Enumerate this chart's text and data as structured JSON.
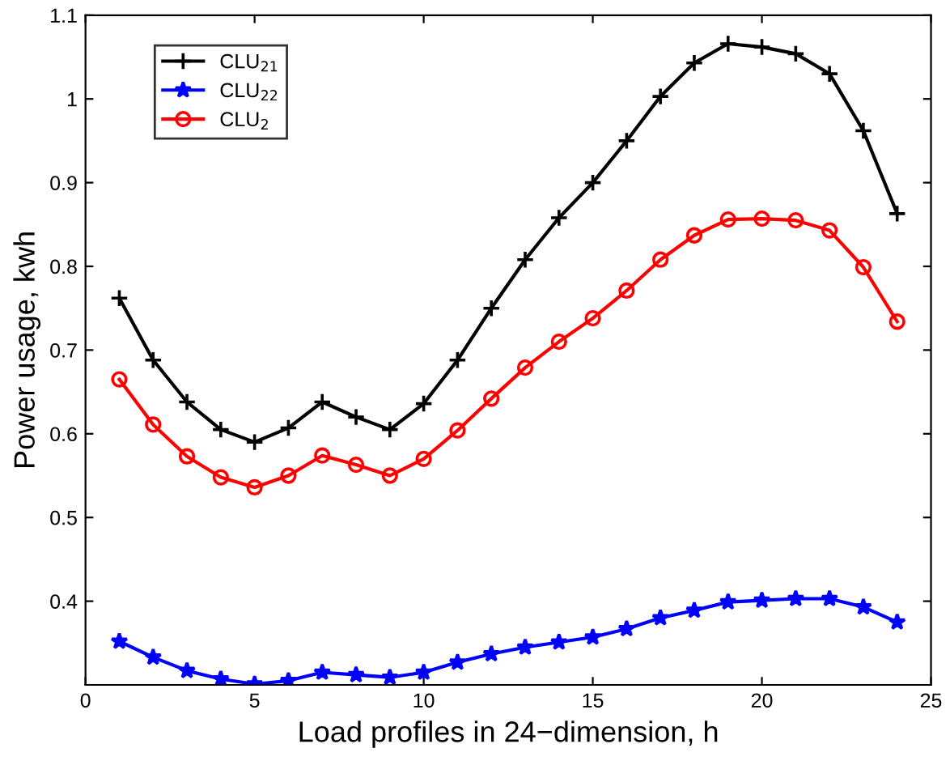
{
  "chart_data": {
    "type": "line",
    "xlabel": "Load profiles in 24−dimension, h",
    "ylabel": "Power usage, kwh",
    "x": [
      1,
      2,
      3,
      4,
      5,
      6,
      7,
      8,
      9,
      10,
      11,
      12,
      13,
      14,
      15,
      16,
      17,
      18,
      19,
      20,
      21,
      22,
      23,
      24
    ],
    "series": [
      {
        "name": "CLU$_{21}$",
        "color": "#000000",
        "marker": "cross",
        "values": [
          0.762,
          0.688,
          0.638,
          0.605,
          0.59,
          0.607,
          0.638,
          0.62,
          0.605,
          0.636,
          0.688,
          0.75,
          0.808,
          0.858,
          0.9,
          0.95,
          1.003,
          1.043,
          1.066,
          1.062,
          1.054,
          1.03,
          0.962,
          0.863
        ]
      },
      {
        "name": "CLU$_{22}$",
        "color": "#0000ff",
        "marker": "star",
        "values": [
          0.352,
          0.333,
          0.317,
          0.307,
          0.301,
          0.305,
          0.315,
          0.312,
          0.309,
          0.315,
          0.327,
          0.337,
          0.345,
          0.351,
          0.357,
          0.367,
          0.38,
          0.389,
          0.399,
          0.401,
          0.403,
          0.403,
          0.393,
          0.375
        ]
      },
      {
        "name": "CLU$_{2}$",
        "color": "#ff0000",
        "marker": "circle",
        "values": [
          0.665,
          0.611,
          0.573,
          0.548,
          0.536,
          0.55,
          0.574,
          0.563,
          0.55,
          0.57,
          0.604,
          0.642,
          0.679,
          0.71,
          0.738,
          0.771,
          0.808,
          0.837,
          0.856,
          0.857,
          0.855,
          0.843,
          0.799,
          0.734
        ]
      }
    ],
    "xlim": [
      0,
      25
    ],
    "xticks": [
      0,
      5,
      10,
      15,
      20,
      25
    ],
    "ylim": [
      0.3,
      1.1
    ],
    "yticks": [
      0.4,
      0.5,
      0.6,
      0.7,
      0.8,
      0.9,
      {
        "value": 1,
        "label": "1"
      },
      1.1
    ],
    "grid": false,
    "legend": "top left"
  }
}
